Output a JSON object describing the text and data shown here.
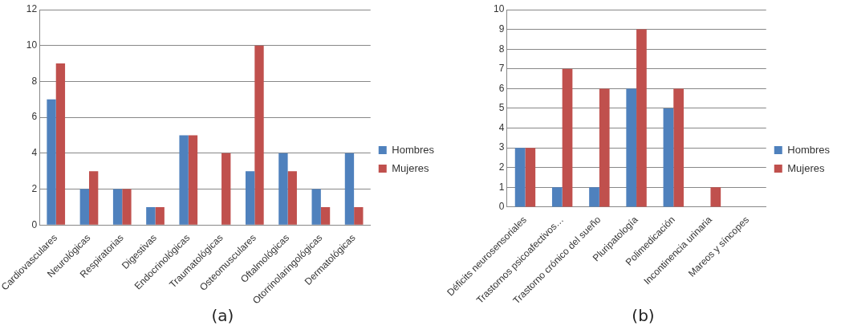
{
  "chart_data": [
    {
      "type": "bar",
      "categories": [
        "Cardiovasculares",
        "Neurológicas",
        "Respiratorias",
        "Digestivas",
        "Endocrinológicas",
        "Traumatológicas",
        "Osteomusculares",
        "Oftalmológicas",
        "Otorrinolaringológicas",
        "Dermatológicas"
      ],
      "series": [
        {
          "name": "Hombres",
          "color": "#4f81bd",
          "values": [
            7,
            2,
            2,
            1,
            5,
            0,
            3,
            4,
            2,
            4
          ]
        },
        {
          "name": "Mujeres",
          "color": "#c0504d",
          "values": [
            9,
            3,
            2,
            1,
            5,
            4,
            10,
            3,
            1,
            1
          ]
        }
      ],
      "ylim": [
        0,
        12
      ],
      "yticks": [
        0,
        2,
        4,
        6,
        8,
        10,
        12
      ],
      "grid": "y",
      "legend": "right",
      "annotations": [
        "(a)"
      ]
    },
    {
      "type": "bar",
      "categories": [
        "Déficits neurosensoriales",
        "Trastornos psicoafectivos…",
        "Trastorno crónico del sueño",
        "Pluripatología",
        "Polimedicación",
        "Incontinencia urinaria",
        "Mareos y síncopes"
      ],
      "series": [
        {
          "name": "Hombres",
          "color": "#4f81bd",
          "values": [
            3,
            1,
            1,
            6,
            5,
            0,
            0
          ]
        },
        {
          "name": "Mujeres",
          "color": "#c0504d",
          "values": [
            3,
            7,
            6,
            9,
            6,
            1,
            0
          ]
        }
      ],
      "ylim": [
        0,
        10
      ],
      "yticks": [
        0,
        1,
        2,
        3,
        4,
        5,
        6,
        7,
        8,
        9,
        10
      ],
      "grid": "y",
      "legend": "right",
      "annotations": [
        "(b)"
      ]
    }
  ]
}
